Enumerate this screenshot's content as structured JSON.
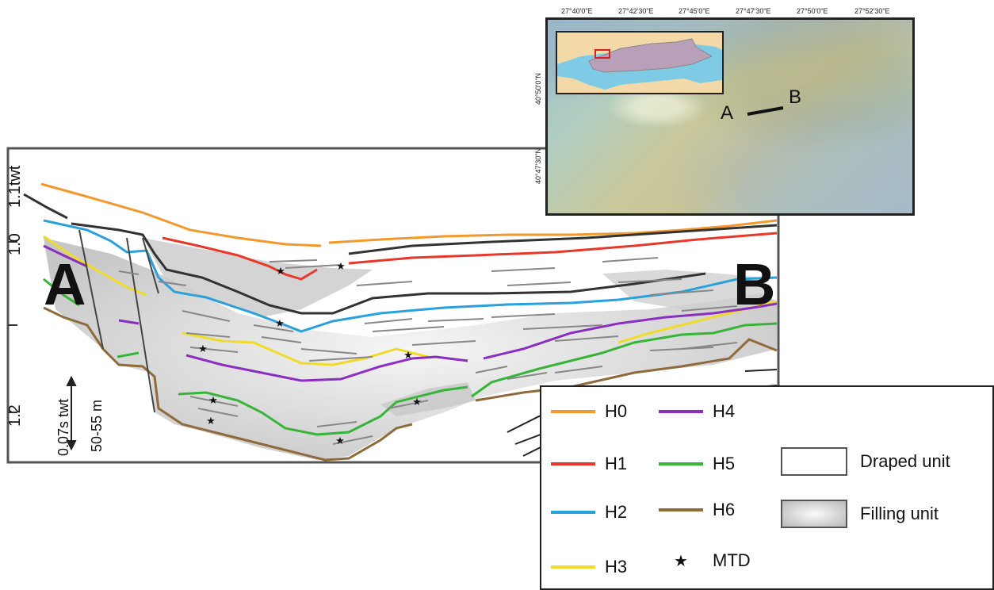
{
  "section": {
    "start_label": "A",
    "end_label": "B",
    "y_axis": {
      "top_label": "1.1twt",
      "tick_1": "1.0",
      "tick_2": "1.2"
    },
    "scale_bar": {
      "label_twt": "0.07s twt",
      "label_m": "50-55 m"
    }
  },
  "map": {
    "lon_labels": [
      "27°40'0\"E",
      "27°42'30\"E",
      "27°45'0\"E",
      "27°47'30\"E",
      "27°50'0\"E",
      "27°52'30\"E"
    ],
    "lat_labels": [
      "40°50'0\"N",
      "40°47'30\"N"
    ],
    "profile_start": "A",
    "profile_end": "B"
  },
  "legend": {
    "horizons": [
      {
        "label": "H0",
        "color": "#f2992e"
      },
      {
        "label": "H1",
        "color": "#e8382a"
      },
      {
        "label": "H2",
        "color": "#2aa0dc"
      },
      {
        "label": "H3",
        "color": "#f0dc28"
      },
      {
        "label": "H4",
        "color": "#8a2fc0"
      },
      {
        "label": "H5",
        "color": "#38b438"
      },
      {
        "label": "H6",
        "color": "#8f6a3a"
      }
    ],
    "mtd_label": "MTD",
    "draped_label": "Draped unit",
    "filling_label": "Filling unit"
  }
}
